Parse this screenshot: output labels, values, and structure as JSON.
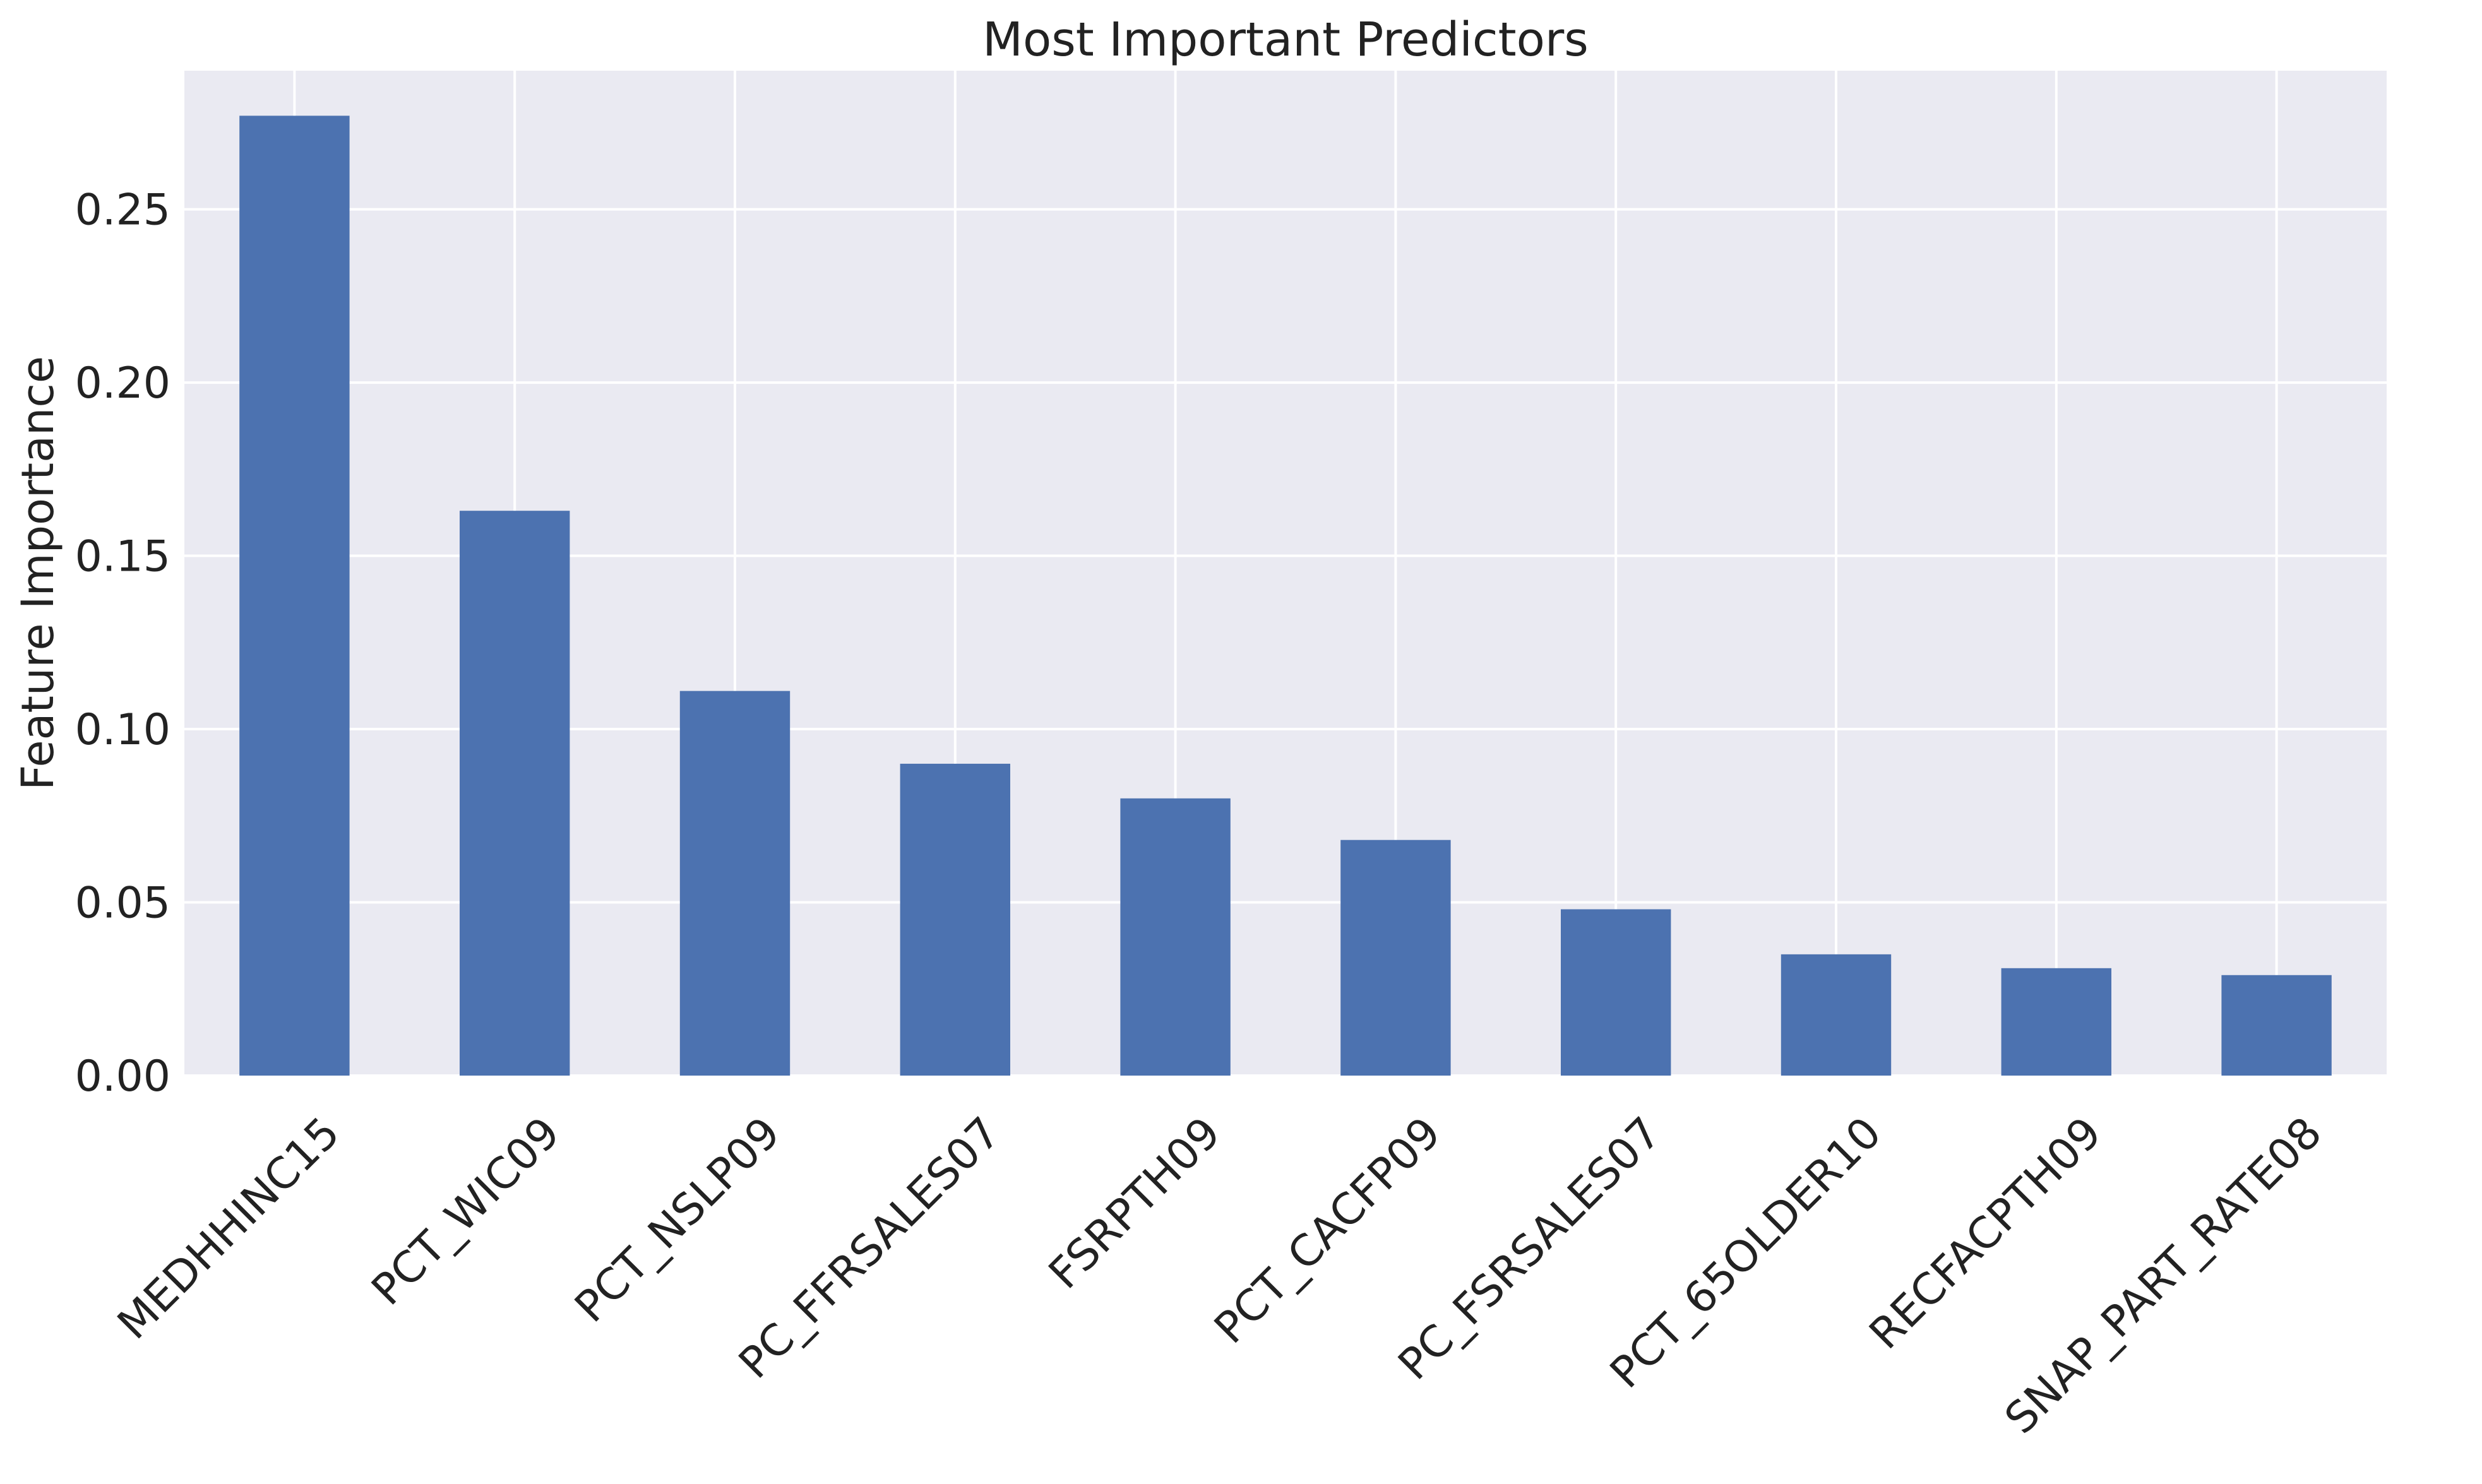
{
  "chart_data": {
    "type": "bar",
    "title": "Most Important Predictors",
    "xlabel": "",
    "ylabel": "Feature Importance",
    "categories": [
      "MEDHHINC15",
      "PCT_WIC09",
      "PCT_NSLP09",
      "PC_FFRSALES07",
      "FSRPTH09",
      "PCT_CACFP09",
      "PC_FSRSALES07",
      "PCT_65OLDER10",
      "RECFACPTH09",
      "SNAP_PART_RATE08"
    ],
    "values": [
      0.277,
      0.163,
      0.111,
      0.09,
      0.08,
      0.068,
      0.048,
      0.035,
      0.031,
      0.029
    ],
    "ylim": [
      0,
      0.29
    ],
    "yticks": [
      0.0,
      0.05,
      0.1,
      0.15,
      0.2,
      0.25
    ],
    "ytick_labels": [
      "0.00",
      "0.05",
      "0.10",
      "0.15",
      "0.20",
      "0.25"
    ],
    "grid": true,
    "legend": "none",
    "colors": {
      "bar": "#4c72b0",
      "plot_background": "#eaeaf2",
      "grid": "#ffffff",
      "text": "#222222"
    }
  }
}
